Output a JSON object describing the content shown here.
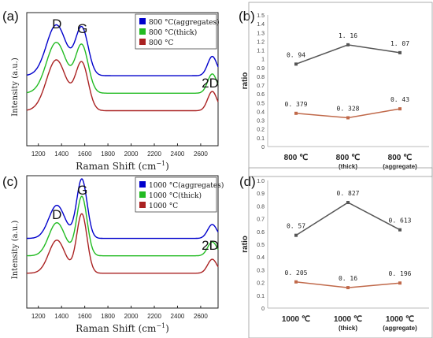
{
  "chart_data": [
    {
      "id": "a",
      "panel_label": "(a)",
      "type": "line",
      "xlabel": "Raman Shift (cm",
      "xlabel_sup": "−1",
      "xlabel_close": ")",
      "ylabel": "Intensity (a.u.)",
      "xlim": [
        1100,
        2750
      ],
      "xticks": [
        1200,
        1400,
        1600,
        1800,
        2000,
        2200,
        2400,
        2600
      ],
      "peak_labels": [
        {
          "text": "D",
          "x": 1360
        },
        {
          "text": "G",
          "x": 1580
        },
        {
          "text": "2D",
          "x": 2700
        }
      ],
      "legend": [
        {
          "name": "800 °C(aggregates)",
          "color": "#0000cc"
        },
        {
          "name": "800 °C(thick)",
          "color": "#22bb22"
        },
        {
          "name": "800 °C",
          "color": "#aa2222"
        }
      ],
      "series": [
        {
          "name": "800 °C(aggregates)",
          "color": "#0000cc",
          "offset": 2.0,
          "peaks": [
            [
              1355,
              1.45,
              85
            ],
            [
              1575,
              1.35,
              55
            ],
            [
              2700,
              0.55,
              40
            ]
          ]
        },
        {
          "name": "800 °C(thick)",
          "color": "#22bb22",
          "offset": 1.5,
          "peaks": [
            [
              1355,
              1.45,
              85
            ],
            [
              1575,
              1.35,
              55
            ],
            [
              2700,
              0.55,
              40
            ]
          ]
        },
        {
          "name": "800 °C",
          "color": "#aa2222",
          "offset": 1.0,
          "peaks": [
            [
              1355,
              1.45,
              85
            ],
            [
              1575,
              1.35,
              55
            ],
            [
              2700,
              0.55,
              40
            ]
          ]
        }
      ]
    },
    {
      "id": "b",
      "panel_label": "(b)",
      "type": "line",
      "ylabel": "ratio",
      "ylim": [
        0,
        1.5
      ],
      "yticks": [
        "0",
        "0.1",
        "0.2",
        "0.3",
        "0.4",
        "0.5",
        "0.6",
        "0.7",
        "0.8",
        "0.9",
        "1",
        "1.1",
        "1.2",
        "1.3",
        "1.4",
        "1.5"
      ],
      "categories": [
        {
          "main": "800 ℃",
          "sub": ""
        },
        {
          "main": "800 ℃",
          "sub": "(thick)"
        },
        {
          "main": "800 ℃",
          "sub": "(aggregate)"
        }
      ],
      "series": [
        {
          "color": "#555555",
          "values": [
            0.94,
            1.16,
            1.07
          ],
          "labels": [
            "0. 94",
            "1. 16",
            "1. 07"
          ]
        },
        {
          "color": "#c0694a",
          "values": [
            0.379,
            0.328,
            0.43
          ],
          "labels": [
            "0. 379",
            "0. 328",
            "0. 43"
          ]
        }
      ]
    },
    {
      "id": "c",
      "panel_label": "(c)",
      "type": "line",
      "xlabel": "Raman Shift (cm",
      "xlabel_sup": "−1",
      "xlabel_close": ")",
      "ylabel": "Intensity (a.u.)",
      "xlim": [
        1100,
        2750
      ],
      "xticks": [
        1200,
        1400,
        1600,
        1800,
        2000,
        2200,
        2400,
        2600
      ],
      "peak_labels": [
        {
          "text": "D",
          "x": 1360
        },
        {
          "text": "G",
          "x": 1580
        },
        {
          "text": "2D",
          "x": 2700
        }
      ],
      "legend": [
        {
          "name": "1000 °C(aggregates)",
          "color": "#0000cc"
        },
        {
          "name": "1000 °C(thick)",
          "color": "#22bb22"
        },
        {
          "name": "1000 °C",
          "color": "#aa2222"
        }
      ],
      "series": [
        {
          "name": "1000 °C(aggregates)",
          "color": "#0000cc",
          "offset": 2.0,
          "peaks": [
            [
              1360,
              0.95,
              70
            ],
            [
              1575,
              1.7,
              45
            ],
            [
              2700,
              0.4,
              40
            ]
          ]
        },
        {
          "name": "1000 °C(thick)",
          "color": "#22bb22",
          "offset": 1.5,
          "peaks": [
            [
              1360,
              0.95,
              70
            ],
            [
              1575,
              1.7,
              45
            ],
            [
              2700,
              0.4,
              40
            ]
          ]
        },
        {
          "name": "1000 °C",
          "color": "#aa2222",
          "offset": 1.0,
          "peaks": [
            [
              1360,
              0.95,
              70
            ],
            [
              1575,
              1.7,
              45
            ],
            [
              2700,
              0.4,
              40
            ]
          ]
        }
      ]
    },
    {
      "id": "d",
      "panel_label": "(d)",
      "type": "line",
      "ylabel": "ratio",
      "ylim": [
        0,
        1.0
      ],
      "yticks": [
        "0",
        "0.1",
        "0.2",
        "0.3",
        "0.4",
        "0.5",
        "0.6",
        "0.7",
        "0.8",
        "0.9",
        "1.0"
      ],
      "categories": [
        {
          "main": "1000 ℃",
          "sub": ""
        },
        {
          "main": "1000 ℃",
          "sub": "(thick)"
        },
        {
          "main": "1000 ℃",
          "sub": "(aggregate)"
        }
      ],
      "series": [
        {
          "color": "#555555",
          "values": [
            0.57,
            0.827,
            0.613
          ],
          "labels": [
            "0. 57",
            "0. 827",
            "0. 613"
          ]
        },
        {
          "color": "#c0694a",
          "values": [
            0.205,
            0.16,
            0.196
          ],
          "labels": [
            "0. 205",
            "0. 16",
            "0. 196"
          ]
        }
      ]
    }
  ]
}
